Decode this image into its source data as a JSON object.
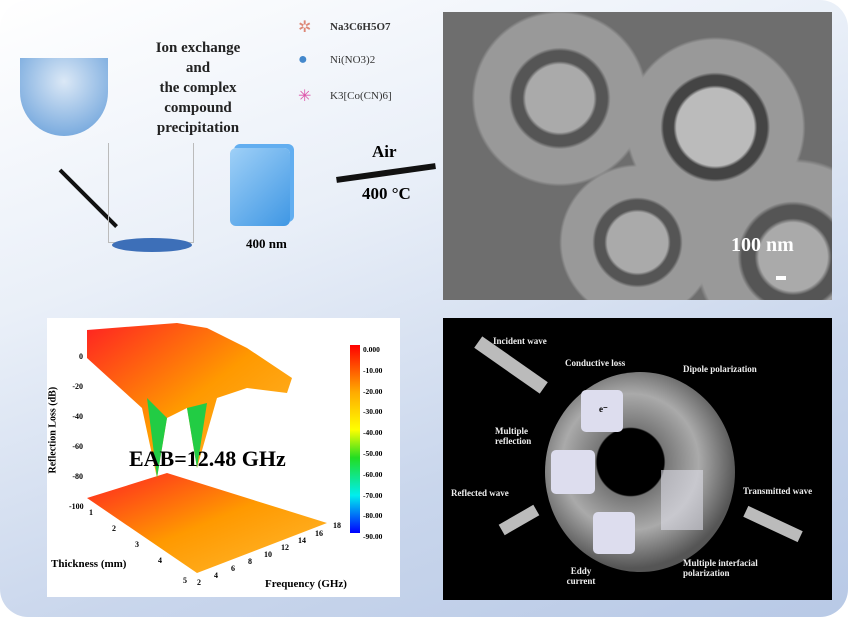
{
  "synthesis": {
    "steps_label": [
      "Ion exchange",
      "and",
      "the complex",
      "compound",
      "precipitation"
    ],
    "reagents": [
      "Na3C6H5O7",
      "Ni(NO3)2",
      "K3[Co(CN)6]"
    ],
    "cube_size": "400 nm",
    "calcination": {
      "atmosphere": "Air",
      "temperature": "400 °C"
    }
  },
  "sem": {
    "scale_bar": "100 nm"
  },
  "rl_plot": {
    "annotation": "EAB=12.48 GHz",
    "z_label": "Reflection Loss (dB)",
    "z_ticks": [
      "0",
      "-20",
      "-40",
      "-60",
      "-80",
      "-100"
    ],
    "thickness_label": "Thickness (mm)",
    "thickness_ticks": [
      "1",
      "2",
      "3",
      "4",
      "5"
    ],
    "frequency_label": "Frequency (GHz)",
    "frequency_ticks": [
      "2",
      "4",
      "6",
      "8",
      "10",
      "12",
      "14",
      "16",
      "18"
    ],
    "colorbar_ticks": [
      "0.000",
      "-10.00",
      "-20.00",
      "-30.00",
      "-40.00",
      "-50.00",
      "-60.00",
      "-70.00",
      "-80.00",
      "-90.00"
    ]
  },
  "mechanism": {
    "incident": "Incident wave",
    "conductive": "Conductive loss",
    "dipole": "Dipole polarization",
    "multiple_reflection": "Multiple reflection",
    "reflected": "Reflected wave",
    "transmitted": "Transmitted wave",
    "eddy": "Eddy current",
    "interfacial": "Multiple interfacial polarization",
    "electron": "e⁻"
  }
}
